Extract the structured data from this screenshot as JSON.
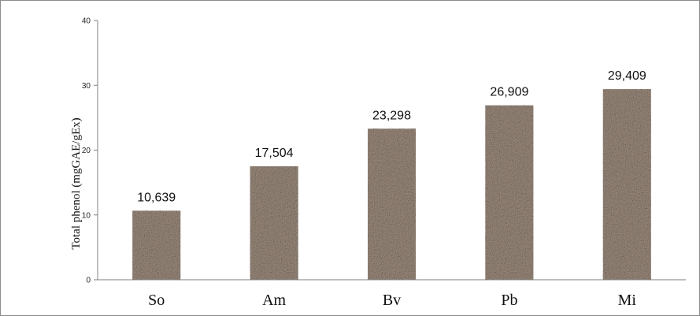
{
  "chart_data": {
    "type": "bar",
    "title": "",
    "xlabel": "",
    "ylabel": "Total phenol (mgGAE/gEx)",
    "categories": [
      "So",
      "Am",
      "Bv",
      "Pb",
      "Mi"
    ],
    "values": [
      10.639,
      17.504,
      23.298,
      26.909,
      29.409
    ],
    "data_labels": [
      "10,639",
      "17,504",
      "23,298",
      "26,909",
      "29,409"
    ],
    "ylim": [
      0,
      40
    ],
    "yticks": [
      0,
      10,
      20,
      30,
      40
    ],
    "grid": false,
    "legend": "none",
    "bar_color": "#9c8b7d"
  }
}
